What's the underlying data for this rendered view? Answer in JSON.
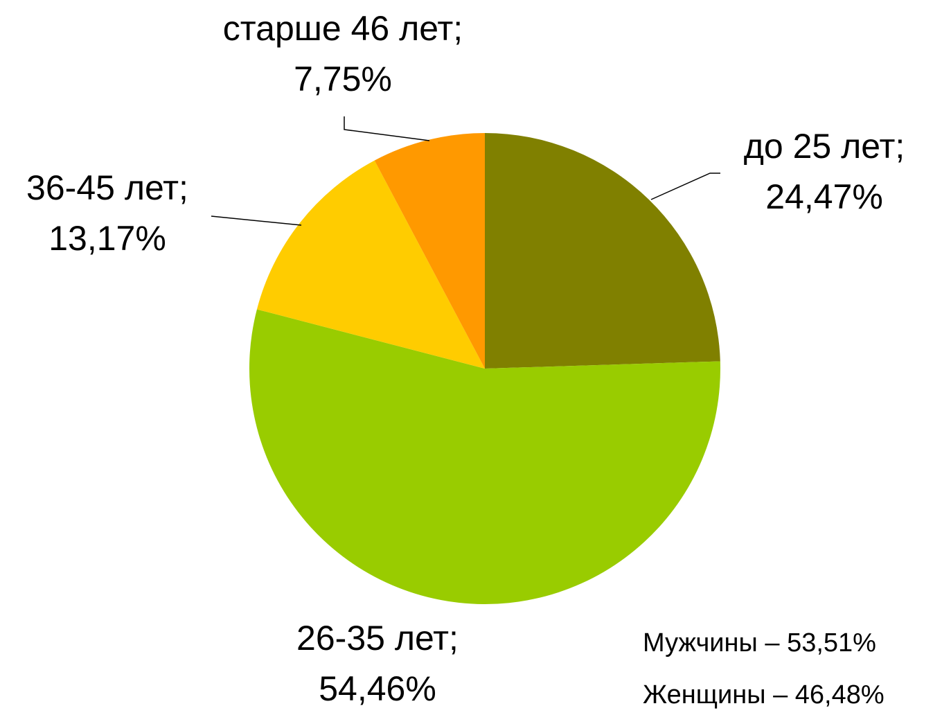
{
  "chart_data": {
    "type": "pie",
    "categories": [
      "до 25 лет;",
      "26-35 лет;",
      "36-45 лет;",
      "старше 46 лет;"
    ],
    "values": [
      24.47,
      54.46,
      13.17,
      7.75
    ],
    "value_labels": [
      "24,47%",
      "54,46%",
      "13,17%",
      "7,75%"
    ],
    "colors": [
      "#808000",
      "#99cc00",
      "#ffcc00",
      "#ff9900"
    ],
    "annotations": [
      "Мужчины – 53,51%",
      "Женщины – 46,48%"
    ]
  }
}
